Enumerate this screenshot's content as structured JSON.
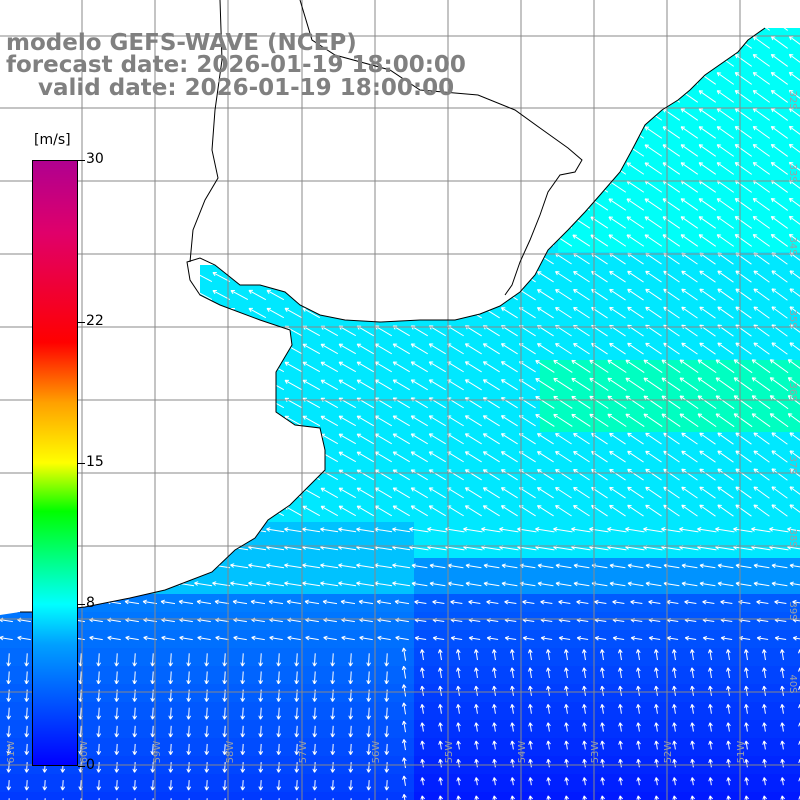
{
  "title": {
    "line1": "modelo GEFS-WAVE (NCEP)",
    "line2": "forecast date: 2026-01-19 18:00:00",
    "line3": "    valid date: 2026-01-19 18:00:00"
  },
  "colorbar": {
    "units": "[m/s]",
    "ticks": [
      "30",
      "22",
      "15",
      "8",
      "0"
    ],
    "tick_values": [
      30,
      22,
      15,
      8,
      0
    ],
    "range": [
      0,
      30
    ],
    "colors": [
      "#0000ff",
      "#00a0ff",
      "#00ffff",
      "#00ff00",
      "#ffff00",
      "#ffa000",
      "#ff0000",
      "#b00090"
    ]
  },
  "map": {
    "latitude_labels": [
      "32S",
      "33S",
      "34S",
      "35S",
      "36S",
      "37S",
      "38S",
      "39S",
      "40S"
    ],
    "longitude_labels": [
      "61W",
      "60W",
      "59W",
      "58W",
      "57W",
      "56W",
      "55W",
      "54W",
      "53W",
      "52W",
      "51W"
    ],
    "land_color": "#ffffff",
    "coastline_color": "#000000",
    "grid_color": "#888888",
    "arrow_color": "#ffffff",
    "wind_direction": "from southeast toward northwest in the north; from north toward south in the southwest"
  }
}
